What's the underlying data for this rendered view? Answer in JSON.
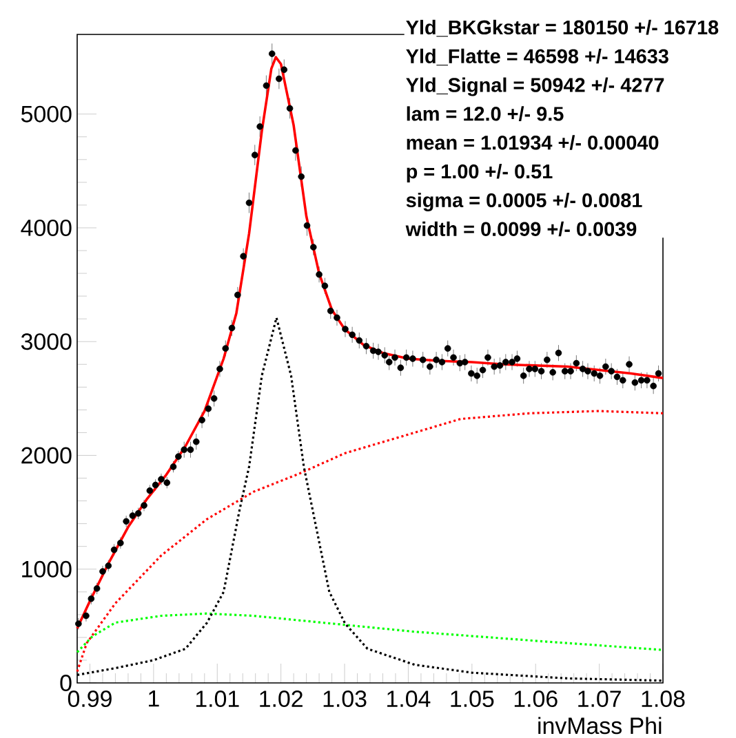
{
  "chart_data": {
    "type": "scatter",
    "marker": "circle",
    "xlabel": "invMass Phi",
    "xlim": [
      0.988,
      1.08
    ],
    "ylim": [
      0,
      5700
    ],
    "xticks": [
      0.99,
      1,
      1.01,
      1.02,
      1.03,
      1.04,
      1.05,
      1.06,
      1.07,
      1.08
    ],
    "yticks": [
      0,
      1000,
      2000,
      3000,
      4000,
      5000
    ],
    "annotations": [
      "Yld_BKGkstar = 180150 +/- 16718",
      "Yld_Flatte = 46598 +/- 14633",
      "Yld_Signal = 50942 +/- 4277",
      "lam = 12.0 +/- 9.5",
      "mean = 1.01934 +/- 0.00040",
      "p = 1.00 +/- 0.51",
      "sigma = 0.0005 +/- 0.0081",
      "width = 0.0099 +/- 0.0039"
    ],
    "series": [
      {
        "color": "#000000",
        "x": [
          0.9882,
          0.9894,
          0.9902,
          0.9911,
          0.992,
          0.9929,
          0.9938,
          0.9948,
          0.9957,
          0.9967,
          0.9976,
          0.9985,
          0.9994,
          1.0003,
          1.0012,
          1.0021,
          1.0031,
          1.0039,
          1.0048,
          1.0058,
          1.0067,
          1.0076,
          1.0086,
          1.0095,
          1.0104,
          1.0113,
          1.0123,
          1.0132,
          1.0141,
          1.015,
          1.0159,
          1.0167,
          1.0177,
          1.0186,
          1.0197,
          1.0205,
          1.0214,
          1.0223,
          1.0232,
          1.0241,
          1.0251,
          1.026,
          1.0269,
          1.0278,
          1.0288,
          1.0301,
          1.0312,
          1.0323,
          1.0334,
          1.0345,
          1.0353,
          1.0363,
          1.037,
          1.0379,
          1.0388,
          1.0397,
          1.0407,
          1.0423,
          1.0434,
          1.0444,
          1.0453,
          1.0462,
          1.0471,
          1.0481,
          1.0489,
          1.0499,
          1.0508,
          1.0517,
          1.0525,
          1.0535,
          1.0544,
          1.0553,
          1.0563,
          1.0571,
          1.0581,
          1.059,
          1.0599,
          1.0609,
          1.0618,
          1.0627,
          1.0636,
          1.0646,
          1.0655,
          1.0664,
          1.0674,
          1.0682,
          1.0692,
          1.0701,
          1.071,
          1.0719,
          1.0728,
          1.0737,
          1.0747,
          1.0756,
          1.0766,
          1.0775,
          1.0785,
          1.0793
        ],
        "values": [
          520,
          590,
          740,
          830,
          980,
          1030,
          1170,
          1230,
          1420,
          1470,
          1490,
          1560,
          1690,
          1740,
          1790,
          1760,
          1900,
          1990,
          2050,
          2050,
          2120,
          2310,
          2410,
          2500,
          2760,
          2940,
          3120,
          3410,
          3750,
          4220,
          4640,
          4890,
          5250,
          5530,
          5310,
          5390,
          5050,
          4680,
          4450,
          4020,
          3830,
          3590,
          3490,
          3270,
          3210,
          3110,
          3060,
          3010,
          2960,
          2920,
          2910,
          2880,
          2820,
          2860,
          2770,
          2860,
          2850,
          2840,
          2780,
          2840,
          2820,
          2940,
          2860,
          2810,
          2820,
          2720,
          2700,
          2750,
          2860,
          2780,
          2790,
          2820,
          2820,
          2850,
          2700,
          2760,
          2760,
          2740,
          2840,
          2730,
          2900,
          2740,
          2740,
          2810,
          2760,
          2740,
          2720,
          2700,
          2780,
          2740,
          2690,
          2660,
          2800,
          2640,
          2660,
          2660,
          2610,
          2720
        ],
        "errors": [
          50,
          50,
          50,
          50,
          50,
          50,
          50,
          50,
          50,
          50,
          50,
          50,
          50,
          50,
          50,
          50,
          50,
          50,
          70,
          70,
          70,
          70,
          70,
          70,
          70,
          70,
          70,
          70,
          70,
          90,
          90,
          90,
          90,
          90,
          90,
          90,
          90,
          90,
          90,
          90,
          70,
          70,
          70,
          70,
          70,
          70,
          70,
          70,
          70,
          70,
          70,
          70,
          70,
          70,
          70,
          70,
          70,
          70,
          70,
          70,
          70,
          70,
          70,
          70,
          70,
          70,
          70,
          70,
          70,
          70,
          70,
          70,
          70,
          70,
          70,
          70,
          70,
          70,
          70,
          70,
          70,
          70,
          70,
          70,
          70,
          70,
          70,
          70,
          70,
          70,
          70,
          70,
          70,
          70,
          70,
          70,
          70,
          70
        ]
      },
      {
        "type": "line",
        "color": "#ff0000",
        "line_style": "solid",
        "marker": "none",
        "x": [
          0.988,
          0.99,
          0.993,
          0.996,
          0.999,
          1.002,
          1.005,
          1.008,
          1.011,
          1.013,
          1.015,
          1.017,
          1.0185,
          1.0192,
          1.02,
          1.022,
          1.024,
          1.026,
          1.028,
          1.03,
          1.033,
          1.036,
          1.04,
          1.045,
          1.05,
          1.055,
          1.06,
          1.065,
          1.07,
          1.075,
          1.08
        ],
        "values": [
          480,
          720,
          1060,
          1370,
          1620,
          1830,
          2080,
          2390,
          2850,
          3250,
          3950,
          4850,
          5400,
          5500,
          5440,
          4900,
          4100,
          3600,
          3280,
          3110,
          2970,
          2900,
          2850,
          2830,
          2820,
          2800,
          2790,
          2780,
          2750,
          2720,
          2680
        ]
      },
      {
        "type": "line",
        "color": "#ff0000",
        "line_style": "dotted",
        "marker": "none",
        "x": [
          0.988,
          0.9895,
          0.994,
          1.0012,
          1.0084,
          1.0157,
          1.0229,
          1.0301,
          1.041,
          1.0482,
          1.059,
          1.0699,
          1.08
        ],
        "values": [
          100,
          350,
          700,
          1120,
          1440,
          1680,
          1840,
          2020,
          2200,
          2320,
          2370,
          2390,
          2370
        ]
      },
      {
        "type": "line",
        "color": "#00ff00",
        "line_style": "dotted",
        "marker": "none",
        "x": [
          0.988,
          0.9904,
          0.994,
          1.0012,
          1.0084,
          1.0157,
          1.0265,
          1.041,
          1.06,
          1.08
        ],
        "values": [
          270,
          410,
          530,
          590,
          610,
          590,
          530,
          450,
          370,
          290
        ]
      },
      {
        "type": "line",
        "color": "#000000",
        "line_style": "dotted",
        "marker": "none",
        "x": [
          0.988,
          0.994,
          1.0,
          1.005,
          1.0084,
          1.011,
          1.0135,
          1.015,
          1.017,
          1.0193,
          1.0216,
          1.0236,
          1.0276,
          1.0301,
          1.0336,
          1.041,
          1.05,
          1.065,
          1.08
        ],
        "values": [
          70,
          130,
          200,
          300,
          530,
          800,
          1520,
          1900,
          2700,
          3210,
          2700,
          1900,
          800,
          520,
          300,
          160,
          90,
          40,
          20
        ]
      }
    ]
  }
}
